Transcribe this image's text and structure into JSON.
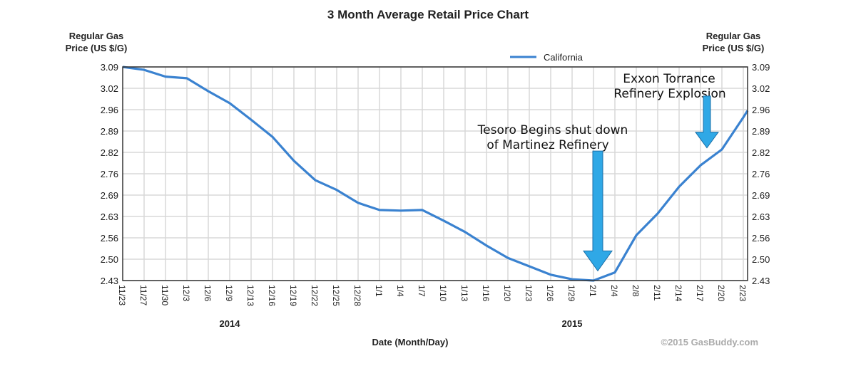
{
  "chart_data": {
    "type": "line",
    "title": "3 Month Average Retail Price Chart",
    "ylabel": [
      "Regular Gas",
      "Price (US $/G)"
    ],
    "ylabel_right": [
      "Regular Gas",
      "Price (US $/G)"
    ],
    "xlabel": "Date (Month/Day)",
    "ylim": [
      2.43,
      3.09
    ],
    "yticks": [
      "3.09",
      "3.02",
      "2.96",
      "2.89",
      "2.82",
      "2.76",
      "2.69",
      "2.63",
      "2.56",
      "2.50",
      "2.43"
    ],
    "grid": true,
    "legend": {
      "position": "top-right",
      "entries": [
        "California"
      ]
    },
    "categories": [
      "11/23",
      "11/27",
      "11/30",
      "12/3",
      "12/6",
      "12/9",
      "12/13",
      "12/16",
      "12/19",
      "12/22",
      "12/25",
      "12/28",
      "1/1",
      "1/4",
      "1/7",
      "1/10",
      "1/13",
      "1/16",
      "1/20",
      "1/23",
      "1/26",
      "1/29",
      "2/1",
      "2/4",
      "2/8",
      "2/11",
      "2/14",
      "2/17",
      "2/20",
      "2/23"
    ],
    "year_labels": [
      {
        "label": "2014",
        "at": 5
      },
      {
        "label": "2015",
        "at": 21
      }
    ],
    "series": [
      {
        "name": "California",
        "color": "#3a82d0",
        "values": [
          3.09,
          3.081,
          3.06,
          3.055,
          3.015,
          2.978,
          2.927,
          2.874,
          2.8,
          2.74,
          2.71,
          2.67,
          2.648,
          2.646,
          2.648,
          2.615,
          2.58,
          2.538,
          2.5,
          2.474,
          2.448,
          2.434,
          2.43,
          2.455,
          2.57,
          2.637,
          2.72,
          2.786,
          2.835,
          2.934
        ]
      }
    ],
    "annotations": [
      {
        "lines": [
          "Tesoro Begins shut down",
          "of Martinez Refinery"
        ],
        "at": 22.2,
        "arrow_from": 2.83,
        "arrow_to": 2.46
      },
      {
        "lines": [
          "Exxon Torrance",
          "Refinery Explosion"
        ],
        "at": 27.3,
        "arrow_from": 3.0,
        "arrow_to": 2.84
      }
    ],
    "credit": "©2015 GasBuddy.com"
  }
}
